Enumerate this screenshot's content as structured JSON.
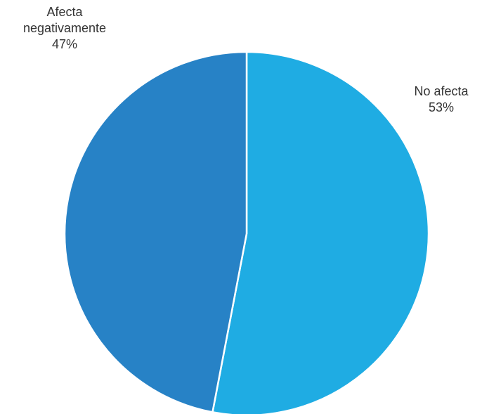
{
  "chart_data": {
    "type": "pie",
    "start_angle_deg": 0,
    "direction": "clockwise",
    "slices": [
      {
        "name": "No afecta",
        "value": 53,
        "percent_label": "53%",
        "color": "#1FACE3"
      },
      {
        "name_lines": [
          "Afecta",
          "negativamente"
        ],
        "value": 47,
        "percent_label": "47%",
        "color": "#2782C6"
      }
    ],
    "slice_border_color": "#ffffff"
  }
}
